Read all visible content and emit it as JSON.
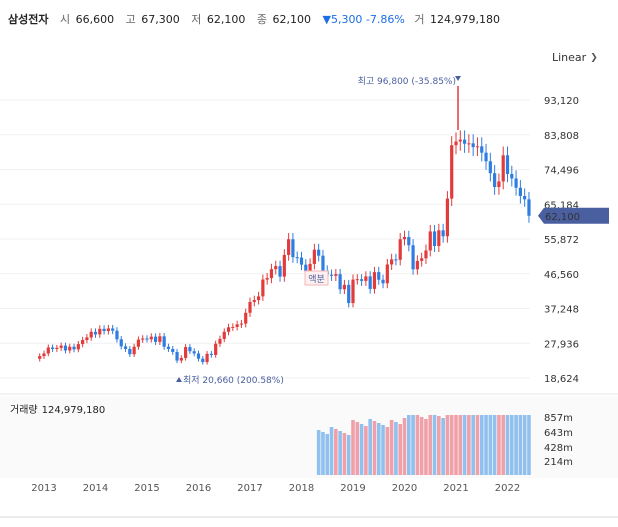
{
  "header": {
    "name": "삼성전자",
    "open_label": "시",
    "open": "66,600",
    "high_label": "고",
    "high": "67,300",
    "low_label": "저",
    "low": "62,100",
    "close_label": "종",
    "close": "62,100",
    "change": "▼5,300 -7.86%",
    "volume_label": "거",
    "volume": "124,979,180"
  },
  "scale_select": {
    "value": "Linear",
    "icon": "chevron-down-icon"
  },
  "volume_panel": {
    "label": "거래량",
    "value": "124,979,180"
  },
  "colors": {
    "up": "#e23b3b",
    "down": "#2f7de1",
    "up_vol": "#f0a0a8",
    "down_vol": "#8fc0ee",
    "price_tag": "#4a5fa0",
    "annotation": "#4a5fa0"
  },
  "chart_data": [
    {
      "type": "candlestick",
      "x_axis_labels": [
        "2013",
        "2014",
        "2015",
        "2016",
        "2017",
        "2018",
        "2019",
        "2020",
        "2021",
        "2022"
      ],
      "y_ticks": [
        "93,120",
        "83,808",
        "74,496",
        "65,184",
        "55,872",
        "46,560",
        "37,248",
        "27,936",
        "18,624"
      ],
      "current_price": "62,100",
      "annotations": {
        "high": "최고 96,800 (-35.85%)",
        "low": "최저 20,660 (200.58%)",
        "split": "액분"
      },
      "monthly_close": [
        [
          2012,
          12,
          24500
        ],
        [
          2013,
          1,
          25200
        ],
        [
          2013,
          2,
          26800
        ],
        [
          2013,
          3,
          26400
        ],
        [
          2013,
          4,
          26700
        ],
        [
          2013,
          5,
          27300
        ],
        [
          2013,
          6,
          26000
        ],
        [
          2013,
          7,
          27000
        ],
        [
          2013,
          8,
          26300
        ],
        [
          2013,
          9,
          27700
        ],
        [
          2013,
          10,
          28800
        ],
        [
          2013,
          11,
          29500
        ],
        [
          2013,
          12,
          31000
        ],
        [
          2014,
          1,
          30300
        ],
        [
          2014,
          2,
          31800
        ],
        [
          2014,
          3,
          31200
        ],
        [
          2014,
          4,
          31900
        ],
        [
          2014,
          5,
          31300
        ],
        [
          2014,
          6,
          29000
        ],
        [
          2014,
          7,
          27100
        ],
        [
          2014,
          8,
          26400
        ],
        [
          2014,
          9,
          25000
        ],
        [
          2014,
          10,
          27000
        ],
        [
          2014,
          11,
          28900
        ],
        [
          2014,
          12,
          29200
        ],
        [
          2015,
          1,
          29000
        ],
        [
          2015,
          2,
          29700
        ],
        [
          2015,
          3,
          28300
        ],
        [
          2015,
          4,
          29800
        ],
        [
          2015,
          5,
          27000
        ],
        [
          2015,
          6,
          26400
        ],
        [
          2015,
          7,
          25600
        ],
        [
          2015,
          8,
          23300
        ],
        [
          2015,
          9,
          24000
        ],
        [
          2015,
          10,
          26900
        ],
        [
          2015,
          11,
          25800
        ],
        [
          2015,
          12,
          25200
        ],
        [
          2016,
          1,
          23800
        ],
        [
          2016,
          2,
          22900
        ],
        [
          2016,
          3,
          25100
        ],
        [
          2016,
          4,
          24800
        ],
        [
          2016,
          5,
          27800
        ],
        [
          2016,
          6,
          29100
        ],
        [
          2016,
          7,
          31000
        ],
        [
          2016,
          8,
          32200
        ],
        [
          2016,
          9,
          32300
        ],
        [
          2016,
          10,
          33000
        ],
        [
          2016,
          11,
          33200
        ],
        [
          2016,
          12,
          36100
        ],
        [
          2017,
          1,
          39000
        ],
        [
          2017,
          2,
          39500
        ],
        [
          2017,
          3,
          40500
        ],
        [
          2017,
          4,
          45000
        ],
        [
          2017,
          5,
          45400
        ],
        [
          2017,
          6,
          47800
        ],
        [
          2017,
          7,
          48600
        ],
        [
          2017,
          8,
          45800
        ],
        [
          2017,
          9,
          51600
        ],
        [
          2017,
          10,
          55800
        ],
        [
          2017,
          11,
          51000
        ],
        [
          2017,
          12,
          50900
        ],
        [
          2018,
          1,
          49000
        ],
        [
          2018,
          2,
          47200
        ],
        [
          2018,
          3,
          49200
        ],
        [
          2018,
          4,
          53000
        ],
        [
          2018,
          5,
          51400
        ],
        [
          2018,
          6,
          47400
        ],
        [
          2018,
          7,
          46300
        ],
        [
          2018,
          8,
          46000
        ],
        [
          2018,
          9,
          46450
        ],
        [
          2018,
          10,
          42400
        ],
        [
          2018,
          11,
          43600
        ],
        [
          2018,
          12,
          38700
        ],
        [
          2019,
          1,
          45000
        ],
        [
          2019,
          2,
          45100
        ],
        [
          2019,
          3,
          44650
        ],
        [
          2019,
          4,
          45850
        ],
        [
          2019,
          5,
          42500
        ],
        [
          2019,
          6,
          47000
        ],
        [
          2019,
          7,
          44950
        ],
        [
          2019,
          8,
          44000
        ],
        [
          2019,
          9,
          49050
        ],
        [
          2019,
          10,
          50400
        ],
        [
          2019,
          11,
          50300
        ],
        [
          2019,
          12,
          55800
        ],
        [
          2020,
          1,
          56400
        ],
        [
          2020,
          2,
          54200
        ],
        [
          2020,
          3,
          47750
        ],
        [
          2020,
          4,
          50000
        ],
        [
          2020,
          5,
          50700
        ],
        [
          2020,
          6,
          52800
        ],
        [
          2020,
          7,
          57900
        ],
        [
          2020,
          8,
          54000
        ],
        [
          2020,
          9,
          58200
        ],
        [
          2020,
          10,
          56600
        ],
        [
          2020,
          11,
          66700
        ],
        [
          2020,
          12,
          81000
        ],
        [
          2021,
          1,
          82000
        ],
        [
          2021,
          2,
          82500
        ],
        [
          2021,
          3,
          81400
        ],
        [
          2021,
          4,
          81500
        ],
        [
          2021,
          5,
          80500
        ],
        [
          2021,
          6,
          80700
        ],
        [
          2021,
          7,
          79000
        ],
        [
          2021,
          8,
          76700
        ],
        [
          2021,
          9,
          73500
        ],
        [
          2021,
          10,
          69800
        ],
        [
          2021,
          11,
          71300
        ],
        [
          2021,
          12,
          78300
        ],
        [
          2022,
          1,
          73300
        ],
        [
          2022,
          2,
          72100
        ],
        [
          2022,
          3,
          69600
        ],
        [
          2022,
          4,
          67400
        ],
        [
          2022,
          5,
          66500
        ],
        [
          2022,
          6,
          62100
        ]
      ],
      "volume_ticks": [
        "857m",
        "643m",
        "428m",
        "214m"
      ]
    }
  ]
}
